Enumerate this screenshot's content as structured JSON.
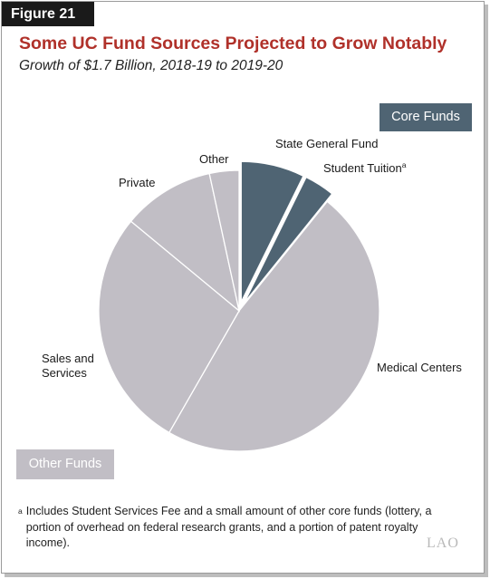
{
  "figure": {
    "tag": "Figure 21",
    "title": "Some UC Fund Sources Projected to Grow Notably",
    "subtitle": "Growth of $1.7 Billion, 2018-19 to 2019-20"
  },
  "chart_data": {
    "type": "pie",
    "title": "Some UC Fund Sources Projected to Grow Notably",
    "subtitle": "Growth of $1.7 Billion, 2018-19 to 2019-20",
    "slices": [
      {
        "label": "State General Fund",
        "value": 7.3,
        "group": "Core Funds",
        "exploded": true
      },
      {
        "label": "Student Tuition",
        "superscript": "a",
        "value": 3.5,
        "group": "Core Funds",
        "exploded": true
      },
      {
        "label": "Medical Centers",
        "value": 47.5,
        "group": "Other Funds",
        "exploded": false
      },
      {
        "label": "Sales and Services",
        "value": 27.7,
        "group": "Other Funds",
        "exploded": false
      },
      {
        "label": "Private",
        "value": 10.6,
        "group": "Other Funds",
        "exploded": false
      },
      {
        "label": "Other",
        "value": 3.4,
        "group": "Other Funds",
        "exploded": false
      }
    ],
    "legend": [
      {
        "label": "Core Funds",
        "color": "#4f6473",
        "placement": "top-right"
      },
      {
        "label": "Other Funds",
        "color": "#c1bec5",
        "placement": "bottom-left"
      }
    ],
    "colors": {
      "core": "#4f6473",
      "other": "#c1bec5",
      "separator": "#ffffff"
    }
  },
  "footnote": {
    "marker": "a",
    "text": "Includes Student Services Fee and a small amount of other core funds (lottery, a portion of overhead on federal research grants, and a portion of patent royalty income)."
  },
  "logo": "LAO"
}
